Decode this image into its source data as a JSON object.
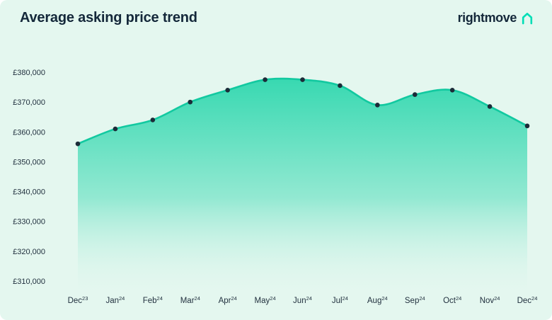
{
  "header": {
    "title": "Average asking price trend",
    "logo_text": "rightmove"
  },
  "colors": {
    "background": "#e4f7ef",
    "title_text": "#14283a",
    "axis_text": "#22313f",
    "line": "#12c9a0",
    "fill_top": "#2fd7ae",
    "fill_bottom": "#e4f7ef",
    "marker": "#1c2b38",
    "logo_teal": "#00deb6"
  },
  "chart_data": {
    "type": "area",
    "title": "Average asking price trend",
    "xlabel": "",
    "ylabel": "",
    "grid": false,
    "legend": false,
    "ylim": [
      310000,
      380000
    ],
    "months": [
      "Dec",
      "Jan",
      "Feb",
      "Mar",
      "Apr",
      "May",
      "Jun",
      "Jul",
      "Aug",
      "Sep",
      "Oct",
      "Nov",
      "Dec"
    ],
    "year_superscripts": [
      "23",
      "24",
      "24",
      "24",
      "24",
      "24",
      "24",
      "24",
      "24",
      "24",
      "24",
      "24",
      "24"
    ],
    "values": [
      356000,
      361000,
      364000,
      370000,
      374000,
      377500,
      377500,
      375500,
      369000,
      372500,
      374000,
      368500,
      362000
    ],
    "y_ticks": [
      380000,
      370000,
      360000,
      350000,
      340000,
      330000,
      320000,
      310000
    ],
    "y_tick_labels": [
      "£380,000",
      "£370,000",
      "£360,000",
      "£350,000",
      "£340,000",
      "£330,000",
      "£320,000",
      "£310,000"
    ]
  }
}
